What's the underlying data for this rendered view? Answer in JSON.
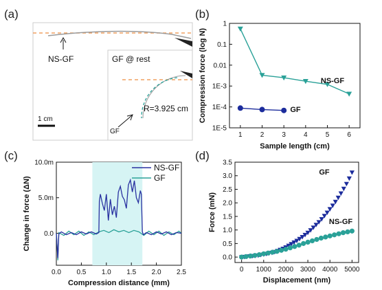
{
  "panels": {
    "a": {
      "label": "(a)",
      "ns_gf_label": "NS-GF",
      "inset_title": "GF @ rest",
      "radius_label": "R=3.925 cm",
      "gf_label": "GF",
      "scale_label": "1 cm"
    },
    "b": {
      "label": "(b)"
    },
    "c": {
      "label": "(c)"
    },
    "d": {
      "label": "(d)"
    }
  },
  "chart_data": [
    {
      "panel": "b",
      "type": "line",
      "xlabel": "Sample length (cm)",
      "ylabel": "Compression force (log N)",
      "log_y": true,
      "xlim": [
        0.5,
        6.5
      ],
      "ylim_exp": [
        -5,
        0
      ],
      "x_ticks": [
        "1",
        "2",
        "3",
        "4",
        "5",
        "6"
      ],
      "y_ticks": [
        "1",
        "0.1",
        "0.01",
        "1E-3",
        "1E-4",
        "1E-5"
      ],
      "series": [
        {
          "name": "NS-GF",
          "color": "#2aa198",
          "marker": "triangle-down",
          "x": [
            1,
            2,
            3,
            4,
            5,
            6
          ],
          "y": [
            0.55,
            0.0033,
            0.0025,
            0.0017,
            0.0012,
            0.00042
          ]
        },
        {
          "name": "GF",
          "color": "#1c2c9c",
          "marker": "circle",
          "x": [
            1,
            2,
            3
          ],
          "y": [
            8.8e-05,
            7.5e-05,
            6.8e-05
          ]
        }
      ]
    },
    {
      "panel": "c",
      "type": "line",
      "xlabel": "Compression distance (mm)",
      "ylabel": "Change in force (ΔN)",
      "xlim": [
        0.0,
        2.5
      ],
      "ylim": [
        -0.0045,
        0.01
      ],
      "x_ticks": [
        "0.0",
        "0.5",
        "1.0",
        "1.5",
        "2.0",
        "2.5"
      ],
      "y_ticks": [
        "0.0",
        "5.0m",
        "10.0m"
      ],
      "highlight_x": [
        0.72,
        1.72
      ],
      "highlight_color": "#d6f4f4",
      "series": [
        {
          "name": "NS-GF",
          "color": "#2830a0",
          "x": [
            0.0,
            0.03,
            0.05,
            0.1,
            0.2,
            0.3,
            0.4,
            0.5,
            0.6,
            0.7,
            0.8,
            0.85,
            0.86,
            0.88,
            0.92,
            0.96,
            1.0,
            1.04,
            1.08,
            1.12,
            1.16,
            1.2,
            1.24,
            1.28,
            1.32,
            1.36,
            1.4,
            1.44,
            1.48,
            1.52,
            1.56,
            1.6,
            1.64,
            1.68,
            1.7,
            1.72,
            1.74,
            1.8,
            1.9,
            2.0,
            2.1,
            2.2,
            2.3,
            2.4,
            2.5
          ],
          "y": [
            0.0,
            -0.0035,
            -0.0001,
            0.0002,
            -0.0002,
            0.0001,
            -0.0002,
            0.0002,
            -0.0001,
            0.0002,
            -0.0001,
            0.0001,
            0.0045,
            0.0055,
            0.0042,
            0.0032,
            0.0055,
            0.0018,
            0.0048,
            0.0026,
            0.0038,
            0.0022,
            0.0058,
            0.0066,
            0.0052,
            0.0047,
            0.0035,
            0.0068,
            0.0075,
            0.0058,
            0.0074,
            0.005,
            0.0043,
            0.006,
            0.0055,
            0.0002,
            -0.0002,
            0.0001,
            -0.0002,
            0.0002,
            -0.0001,
            0.0002,
            -0.0002,
            0.0001,
            0.0
          ]
        },
        {
          "name": "GF",
          "color": "#2aa198",
          "x": [
            0.0,
            0.03,
            0.05,
            0.15,
            0.25,
            0.35,
            0.45,
            0.55,
            0.65,
            0.75,
            0.85,
            0.95,
            1.05,
            1.15,
            1.25,
            1.35,
            1.45,
            1.55,
            1.65,
            1.75,
            1.85,
            1.95,
            2.05,
            2.15,
            2.25,
            2.35,
            2.45,
            2.5
          ],
          "y": [
            0.0,
            -0.0038,
            0.0001,
            -0.0003,
            0.0003,
            -0.0002,
            0.0003,
            -0.0003,
            0.0002,
            -0.0002,
            0.0002,
            0.0004,
            0.0001,
            0.0005,
            0.0002,
            0.0004,
            0.0001,
            0.0004,
            0.0002,
            -0.0003,
            0.0003,
            -0.0002,
            0.0003,
            -0.0003,
            0.0002,
            -0.0002,
            0.0003,
            0.0
          ]
        }
      ]
    },
    {
      "panel": "d",
      "type": "scatter",
      "xlabel": "Displacement (nm)",
      "ylabel": "Force (mN)",
      "xlim": [
        -300,
        5300
      ],
      "ylim": [
        -0.2,
        3.5
      ],
      "x_ticks": [
        "0",
        "1000",
        "2000",
        "3000",
        "4000",
        "5000"
      ],
      "y_ticks": [
        "0.0",
        "0.5",
        "1.0",
        "1.5",
        "2.0",
        "2.5",
        "3.0",
        "3.5"
      ],
      "series": [
        {
          "name": "GF",
          "color": "#1c2c9c",
          "marker": "triangle-down",
          "x": [
            0,
            125,
            250,
            375,
            500,
            625,
            750,
            875,
            1000,
            1125,
            1250,
            1375,
            1500,
            1625,
            1750,
            1875,
            2000,
            2125,
            2250,
            2375,
            2500,
            2625,
            2750,
            2875,
            3000,
            3125,
            3250,
            3375,
            3500,
            3625,
            3750,
            3875,
            4000,
            4125,
            4250,
            4375,
            4500,
            4625,
            4750,
            4875,
            5000
          ],
          "y": [
            0.0,
            0.01,
            0.02,
            0.03,
            0.04,
            0.05,
            0.06,
            0.08,
            0.1,
            0.12,
            0.14,
            0.16,
            0.19,
            0.23,
            0.27,
            0.31,
            0.36,
            0.42,
            0.48,
            0.54,
            0.6,
            0.67,
            0.74,
            0.82,
            0.9,
            0.99,
            1.09,
            1.19,
            1.29,
            1.4,
            1.52,
            1.64,
            1.77,
            1.9,
            2.04,
            2.19,
            2.35,
            2.52,
            2.7,
            2.9,
            3.12
          ]
        },
        {
          "name": "NS-GF",
          "color": "#2aa198",
          "marker": "circle",
          "x": [
            0,
            200,
            400,
            600,
            800,
            1000,
            1200,
            1400,
            1600,
            1800,
            2000,
            2200,
            2400,
            2600,
            2800,
            3000,
            3200,
            3400,
            3600,
            3800,
            4000,
            4200,
            4400,
            4600,
            4800,
            5000
          ],
          "y": [
            0.0,
            0.02,
            0.04,
            0.06,
            0.09,
            0.12,
            0.15,
            0.18,
            0.21,
            0.25,
            0.29,
            0.34,
            0.39,
            0.44,
            0.5,
            0.55,
            0.6,
            0.65,
            0.7,
            0.74,
            0.78,
            0.82,
            0.86,
            0.9,
            0.93,
            0.96
          ]
        }
      ]
    }
  ]
}
